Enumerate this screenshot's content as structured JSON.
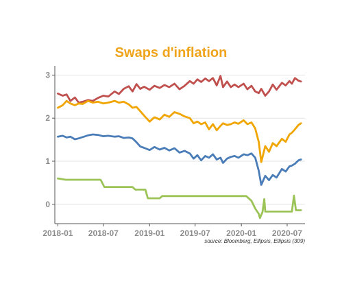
{
  "chart_data": {
    "type": "line",
    "title": "Swaps d'inflation",
    "source": "source: Bloomberg, Ellipsis, Ellipsis (309)",
    "x_axis": {
      "type": "date",
      "range": [
        "2017-12-20",
        "2020-09-10"
      ],
      "tick_values": [
        "2018-01-01",
        "2018-07-01",
        "2019-01-01",
        "2019-07-01",
        "2020-01-01",
        "2020-07-01"
      ],
      "tick_labels": [
        "2018-01",
        "2018-07",
        "2019-01",
        "2019-07",
        "2020-01",
        "2020-07"
      ]
    },
    "y_axis": {
      "range": [
        -0.45,
        3.15
      ],
      "tick_values": [
        0,
        1,
        2,
        3
      ],
      "tick_labels": [
        "0",
        "1",
        "2",
        "3"
      ]
    },
    "grid": "horizontal",
    "legend": "none",
    "colors": {
      "title": "#f0a41b",
      "red": "#c0504d",
      "orange": "#f0a500",
      "blue": "#4a7db8",
      "green": "#9bc356",
      "grid": "#e3e3e3",
      "axis": "#555555",
      "tick_label": "#8c8c8c"
    },
    "series": [
      {
        "color_key": "red",
        "points": [
          [
            "2018-01-01",
            2.57
          ],
          [
            "2018-01-20",
            2.52
          ],
          [
            "2018-02-05",
            2.55
          ],
          [
            "2018-02-20",
            2.4
          ],
          [
            "2018-03-10",
            2.48
          ],
          [
            "2018-03-25",
            2.36
          ],
          [
            "2018-04-10",
            2.38
          ],
          [
            "2018-05-01",
            2.42
          ],
          [
            "2018-05-20",
            2.4
          ],
          [
            "2018-06-10",
            2.47
          ],
          [
            "2018-07-01",
            2.52
          ],
          [
            "2018-07-20",
            2.5
          ],
          [
            "2018-08-15",
            2.62
          ],
          [
            "2018-09-01",
            2.56
          ],
          [
            "2018-09-20",
            2.68
          ],
          [
            "2018-10-10",
            2.74
          ],
          [
            "2018-10-25",
            2.62
          ],
          [
            "2018-11-10",
            2.79
          ],
          [
            "2018-11-25",
            2.68
          ],
          [
            "2018-12-10",
            2.73
          ],
          [
            "2019-01-01",
            2.66
          ],
          [
            "2019-01-20",
            2.75
          ],
          [
            "2019-02-10",
            2.7
          ],
          [
            "2019-03-01",
            2.77
          ],
          [
            "2019-03-20",
            2.72
          ],
          [
            "2019-04-10",
            2.8
          ],
          [
            "2019-04-30",
            2.67
          ],
          [
            "2019-05-20",
            2.75
          ],
          [
            "2019-06-10",
            2.86
          ],
          [
            "2019-06-25",
            2.8
          ],
          [
            "2019-07-10",
            2.9
          ],
          [
            "2019-07-25",
            2.84
          ],
          [
            "2019-08-10",
            2.92
          ],
          [
            "2019-08-25",
            2.86
          ],
          [
            "2019-09-10",
            2.93
          ],
          [
            "2019-09-25",
            2.76
          ],
          [
            "2019-10-10",
            2.98
          ],
          [
            "2019-10-20",
            2.72
          ],
          [
            "2019-11-05",
            2.85
          ],
          [
            "2019-11-20",
            2.72
          ],
          [
            "2019-12-05",
            2.78
          ],
          [
            "2019-12-20",
            2.72
          ],
          [
            "2020-01-10",
            2.8
          ],
          [
            "2020-01-25",
            2.67
          ],
          [
            "2020-02-10",
            2.75
          ],
          [
            "2020-02-25",
            2.62
          ],
          [
            "2020-03-10",
            2.58
          ],
          [
            "2020-03-20",
            2.68
          ],
          [
            "2020-04-05",
            2.52
          ],
          [
            "2020-04-20",
            2.62
          ],
          [
            "2020-05-05",
            2.78
          ],
          [
            "2020-05-20",
            2.66
          ],
          [
            "2020-06-10",
            2.82
          ],
          [
            "2020-06-25",
            2.76
          ],
          [
            "2020-07-10",
            2.86
          ],
          [
            "2020-07-20",
            2.8
          ],
          [
            "2020-08-01",
            2.93
          ],
          [
            "2020-08-15",
            2.87
          ],
          [
            "2020-08-25",
            2.85
          ]
        ]
      },
      {
        "color_key": "orange",
        "points": [
          [
            "2018-01-01",
            2.24
          ],
          [
            "2018-01-20",
            2.3
          ],
          [
            "2018-02-05",
            2.4
          ],
          [
            "2018-02-20",
            2.34
          ],
          [
            "2018-03-10",
            2.3
          ],
          [
            "2018-03-25",
            2.34
          ],
          [
            "2018-04-10",
            2.33
          ],
          [
            "2018-05-01",
            2.4
          ],
          [
            "2018-05-20",
            2.36
          ],
          [
            "2018-06-10",
            2.38
          ],
          [
            "2018-07-01",
            2.34
          ],
          [
            "2018-07-20",
            2.36
          ],
          [
            "2018-08-15",
            2.4
          ],
          [
            "2018-09-01",
            2.36
          ],
          [
            "2018-09-20",
            2.38
          ],
          [
            "2018-10-10",
            2.32
          ],
          [
            "2018-10-25",
            2.24
          ],
          [
            "2018-11-10",
            2.26
          ],
          [
            "2018-11-25",
            2.16
          ],
          [
            "2018-12-10",
            2.06
          ],
          [
            "2019-01-01",
            1.92
          ],
          [
            "2019-01-20",
            2.02
          ],
          [
            "2019-02-10",
            1.97
          ],
          [
            "2019-03-01",
            2.08
          ],
          [
            "2019-03-20",
            2.03
          ],
          [
            "2019-04-10",
            2.14
          ],
          [
            "2019-04-30",
            2.1
          ],
          [
            "2019-05-20",
            2.04
          ],
          [
            "2019-06-10",
            2.0
          ],
          [
            "2019-06-25",
            1.88
          ],
          [
            "2019-07-10",
            1.92
          ],
          [
            "2019-07-25",
            1.86
          ],
          [
            "2019-08-10",
            1.9
          ],
          [
            "2019-08-25",
            1.74
          ],
          [
            "2019-09-10",
            1.86
          ],
          [
            "2019-09-25",
            1.72
          ],
          [
            "2019-10-10",
            1.82
          ],
          [
            "2019-10-20",
            1.88
          ],
          [
            "2019-11-05",
            1.84
          ],
          [
            "2019-11-20",
            1.86
          ],
          [
            "2019-12-05",
            1.9
          ],
          [
            "2019-12-20",
            1.87
          ],
          [
            "2020-01-10",
            1.95
          ],
          [
            "2020-01-25",
            1.86
          ],
          [
            "2020-02-10",
            1.9
          ],
          [
            "2020-02-25",
            1.76
          ],
          [
            "2020-03-10",
            1.45
          ],
          [
            "2020-03-20",
            0.98
          ],
          [
            "2020-04-05",
            1.35
          ],
          [
            "2020-04-20",
            1.22
          ],
          [
            "2020-05-05",
            1.42
          ],
          [
            "2020-05-20",
            1.35
          ],
          [
            "2020-06-10",
            1.52
          ],
          [
            "2020-06-25",
            1.45
          ],
          [
            "2020-07-10",
            1.62
          ],
          [
            "2020-07-20",
            1.66
          ],
          [
            "2020-08-01",
            1.74
          ],
          [
            "2020-08-15",
            1.84
          ],
          [
            "2020-08-25",
            1.88
          ]
        ]
      },
      {
        "color_key": "blue",
        "points": [
          [
            "2018-01-01",
            1.57
          ],
          [
            "2018-01-20",
            1.59
          ],
          [
            "2018-02-05",
            1.55
          ],
          [
            "2018-02-20",
            1.57
          ],
          [
            "2018-03-10",
            1.51
          ],
          [
            "2018-03-25",
            1.53
          ],
          [
            "2018-04-10",
            1.56
          ],
          [
            "2018-05-01",
            1.6
          ],
          [
            "2018-05-20",
            1.62
          ],
          [
            "2018-06-10",
            1.61
          ],
          [
            "2018-07-01",
            1.58
          ],
          [
            "2018-07-20",
            1.59
          ],
          [
            "2018-08-15",
            1.57
          ],
          [
            "2018-09-01",
            1.58
          ],
          [
            "2018-09-20",
            1.54
          ],
          [
            "2018-10-10",
            1.55
          ],
          [
            "2018-10-25",
            1.53
          ],
          [
            "2018-11-10",
            1.44
          ],
          [
            "2018-11-25",
            1.34
          ],
          [
            "2018-12-10",
            1.31
          ],
          [
            "2019-01-01",
            1.26
          ],
          [
            "2019-01-20",
            1.33
          ],
          [
            "2019-02-10",
            1.27
          ],
          [
            "2019-03-01",
            1.31
          ],
          [
            "2019-03-20",
            1.25
          ],
          [
            "2019-04-10",
            1.3
          ],
          [
            "2019-04-30",
            1.2
          ],
          [
            "2019-05-20",
            1.24
          ],
          [
            "2019-06-10",
            1.18
          ],
          [
            "2019-06-25",
            1.06
          ],
          [
            "2019-07-10",
            1.14
          ],
          [
            "2019-07-25",
            1.02
          ],
          [
            "2019-08-10",
            1.12
          ],
          [
            "2019-08-25",
            1.08
          ],
          [
            "2019-09-10",
            1.16
          ],
          [
            "2019-09-25",
            1.04
          ],
          [
            "2019-10-10",
            1.08
          ],
          [
            "2019-10-20",
            0.96
          ],
          [
            "2019-11-05",
            1.06
          ],
          [
            "2019-11-20",
            1.1
          ],
          [
            "2019-12-05",
            1.12
          ],
          [
            "2019-12-20",
            1.08
          ],
          [
            "2020-01-10",
            1.16
          ],
          [
            "2020-01-25",
            1.14
          ],
          [
            "2020-02-10",
            1.18
          ],
          [
            "2020-02-25",
            1.08
          ],
          [
            "2020-03-10",
            0.78
          ],
          [
            "2020-03-20",
            0.45
          ],
          [
            "2020-04-05",
            0.66
          ],
          [
            "2020-04-20",
            0.56
          ],
          [
            "2020-05-05",
            0.68
          ],
          [
            "2020-05-20",
            0.62
          ],
          [
            "2020-06-10",
            0.82
          ],
          [
            "2020-06-25",
            0.76
          ],
          [
            "2020-07-10",
            0.88
          ],
          [
            "2020-07-20",
            0.9
          ],
          [
            "2020-08-01",
            0.94
          ],
          [
            "2020-08-15",
            1.02
          ],
          [
            "2020-08-25",
            1.04
          ]
        ]
      },
      {
        "color_key": "green",
        "points": [
          [
            "2018-01-01",
            0.6
          ],
          [
            "2018-01-20",
            0.58
          ],
          [
            "2018-02-01",
            0.57
          ],
          [
            "2018-06-20",
            0.57
          ],
          [
            "2018-07-05",
            0.4
          ],
          [
            "2018-10-25",
            0.4
          ],
          [
            "2018-11-05",
            0.34
          ],
          [
            "2018-12-15",
            0.34
          ],
          [
            "2018-12-25",
            0.14
          ],
          [
            "2019-02-10",
            0.14
          ],
          [
            "2019-02-20",
            0.19
          ],
          [
            "2020-01-20",
            0.19
          ],
          [
            "2020-02-10",
            0.08
          ],
          [
            "2020-02-25",
            -0.1
          ],
          [
            "2020-03-10",
            -0.22
          ],
          [
            "2020-03-15",
            -0.32
          ],
          [
            "2020-03-25",
            -0.18
          ],
          [
            "2020-04-01",
            0.12
          ],
          [
            "2020-04-05",
            -0.17
          ],
          [
            "2020-07-20",
            -0.17
          ],
          [
            "2020-07-28",
            0.2
          ],
          [
            "2020-08-05",
            -0.14
          ],
          [
            "2020-08-25",
            -0.14
          ]
        ]
      }
    ]
  }
}
